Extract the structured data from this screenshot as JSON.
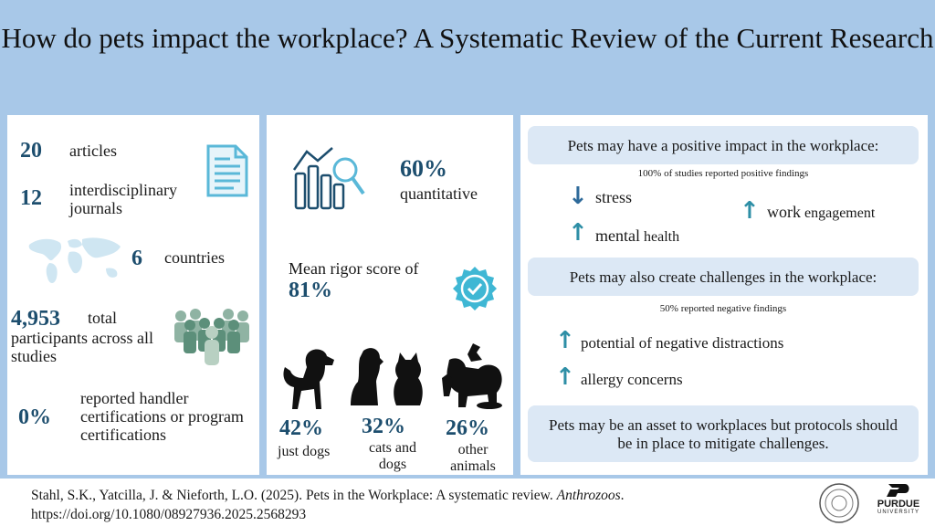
{
  "title": "How do pets impact the workplace? A Systematic Review of the Current Research",
  "panel1": {
    "articles_num": "20",
    "articles_lbl": "articles",
    "journals_num": "12",
    "journals_lbl": "interdisciplinary journals",
    "countries_num": "6",
    "countries_lbl": "countries",
    "participants_num": "4,953",
    "participants_lbl_1": "total",
    "participants_lbl_2": "participants across all studies",
    "cert_num": "0%",
    "cert_lbl": "reported handler certifications or program certifications"
  },
  "panel2": {
    "quant_num": "60%",
    "quant_lbl": "quantitative",
    "rigor_lbl": "Mean rigor score of",
    "rigor_num": "81%",
    "dogs_num": "42%",
    "dogs_lbl": "just dogs",
    "catsdogs_num": "32%",
    "catsdogs_lbl": "cats and dogs",
    "other_num": "26%",
    "other_lbl": "other animals"
  },
  "panel3": {
    "positive_heading": "Pets may have a positive impact in the workplace:",
    "positive_sub": "100% of studies reported positive findings",
    "stress": "stress",
    "mental_a": "mental",
    "mental_b": "health",
    "work_a": "work",
    "work_b": "engagement",
    "negative_heading": "Pets may also create challenges in the workplace:",
    "negative_sub": "50% reported negative findings",
    "distractions": "potential of negative distractions",
    "allergy": "allergy concerns",
    "conclusion": "Pets may be an asset to workplaces but protocols should be in place to mitigate challenges."
  },
  "citation": {
    "authors": "Stahl, S.K., Yatcilla, J. & Nieforth, L.O. (2025). Pets in the Workplace: A systematic review.",
    "journal": "Anthrozoos",
    "doi": "https://doi.org/10.1080/08927936.2025.2568293"
  },
  "logos": {
    "purdue_1": "PURDUE",
    "purdue_2": "UNIVERSITY"
  },
  "colors": {
    "background": "#a8c8e8",
    "accent": "#1d4e6e",
    "teal": "#2e8fa6",
    "callout": "#dce8f5"
  },
  "icons": [
    "document-icon",
    "world-map-icon",
    "people-group-icon",
    "bar-chart-magnifier-icon",
    "checkmark-badge-icon",
    "dog-icon",
    "cat-and-dog-icon",
    "other-animals-icon",
    "arrow-down-icon",
    "arrow-up-icon",
    "university-seal-icon",
    "purdue-logo-icon"
  ]
}
